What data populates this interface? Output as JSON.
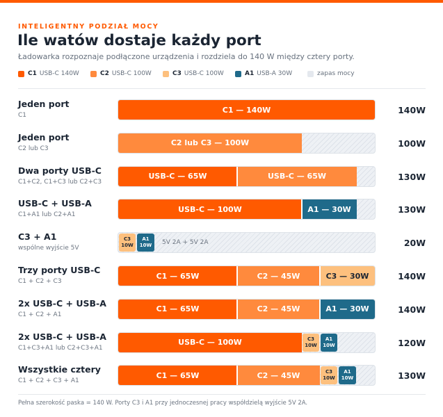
{
  "header": {
    "eyebrow": "INTELIGENTNY PODZIAŁ MOCY",
    "title": "Ile watów dostaje każdy port",
    "subtitle": "Ładowarka rozpoznaje podłączone urządzenia i rozdziela do 140 W między cztery porty."
  },
  "legend": [
    {
      "key": "C1",
      "label": "USB-C 140W",
      "color": "#ff5a00"
    },
    {
      "key": "C2",
      "label": "USB-C 100W",
      "color": "#ff8a3d"
    },
    {
      "key": "C3",
      "label": "USB-C 100W",
      "color": "#fdc07e"
    },
    {
      "key": "A1",
      "label": "USB-A 30W",
      "color": "#1f6a8a"
    },
    {
      "key": "",
      "label": "zapas mocy",
      "color": "#e4e8ee"
    }
  ],
  "chart_data": {
    "type": "bar",
    "orientation": "horizontal",
    "stacked": true,
    "xlim": [
      0,
      140
    ],
    "unit": "W",
    "categories": [
      "Jeden port",
      "Jeden port",
      "Dwa porty USB-C",
      "USB-C + USB-A",
      "C3 + A1",
      "Trzy porty USB-C",
      "2x USB-C + USB-A",
      "2x USB-C + USB-A",
      "Wszystkie cztery"
    ],
    "rows": [
      {
        "label": "Jeden port",
        "sub": "C1",
        "total": "140W",
        "spare_label": "",
        "segments": [
          {
            "port": "C1",
            "value": 140,
            "label": "C1 — 140W"
          }
        ]
      },
      {
        "label": "Jeden port",
        "sub": "C2 lub C3",
        "total": "100W",
        "spare_label": "",
        "segments": [
          {
            "port": "C2",
            "value": 100,
            "label": "C2 lub C3 — 100W"
          }
        ]
      },
      {
        "label": "Dwa porty USB-C",
        "sub": "C1+C2, C1+C3 lub C2+C3",
        "total": "130W",
        "spare_label": "",
        "segments": [
          {
            "port": "C1",
            "value": 65,
            "label": "USB-C — 65W"
          },
          {
            "port": "C2",
            "value": 65,
            "label": "USB-C — 65W"
          }
        ]
      },
      {
        "label": "USB-C + USB-A",
        "sub": "C1+A1 lub C2+A1",
        "total": "130W",
        "spare_label": "",
        "segments": [
          {
            "port": "C1",
            "value": 100,
            "label": "USB-C — 100W"
          },
          {
            "port": "A1",
            "value": 30,
            "label": "A1 — 30W"
          }
        ]
      },
      {
        "label": "C3 + A1",
        "sub": "wspólne wyjście 5V",
        "total": "20W",
        "spare_label": "5V 2A + 5V 2A",
        "segments": [
          {
            "port": "C3",
            "value": 10,
            "label": "C3 10W",
            "small": true
          },
          {
            "port": "A1",
            "value": 10,
            "label": "A1 10W",
            "small": true
          }
        ]
      },
      {
        "label": "Trzy porty USB-C",
        "sub": "C1 + C2 + C3",
        "total": "140W",
        "spare_label": "",
        "segments": [
          {
            "port": "C1",
            "value": 65,
            "label": "C1 — 65W"
          },
          {
            "port": "C2",
            "value": 45,
            "label": "C2 — 45W"
          },
          {
            "port": "C3",
            "value": 30,
            "label": "C3 — 30W"
          }
        ]
      },
      {
        "label": "2x USB-C + USB-A",
        "sub": "C1 + C2 + A1",
        "total": "140W",
        "spare_label": "",
        "segments": [
          {
            "port": "C1",
            "value": 65,
            "label": "C1 — 65W"
          },
          {
            "port": "C2",
            "value": 45,
            "label": "C2 — 45W"
          },
          {
            "port": "A1",
            "value": 30,
            "label": "A1 — 30W"
          }
        ]
      },
      {
        "label": "2x USB-C + USB-A",
        "sub": "C1+C3+A1 lub C2+C3+A1",
        "total": "120W",
        "spare_label": "",
        "segments": [
          {
            "port": "C1",
            "value": 100,
            "label": "USB-C — 100W"
          },
          {
            "port": "C3",
            "value": 10,
            "label": "C3 10W",
            "small": true
          },
          {
            "port": "A1",
            "value": 10,
            "label": "A1 10W",
            "small": true
          }
        ]
      },
      {
        "label": "Wszystkie cztery",
        "sub": "C1 + C2 + C3 + A1",
        "total": "130W",
        "spare_label": "",
        "segments": [
          {
            "port": "C1",
            "value": 65,
            "label": "C1 — 65W"
          },
          {
            "port": "C2",
            "value": 45,
            "label": "C2 — 45W"
          },
          {
            "port": "C3",
            "value": 10,
            "label": "C3 10W",
            "small": true
          },
          {
            "port": "A1",
            "value": 10,
            "label": "A1 10W",
            "small": true
          }
        ]
      }
    ]
  },
  "footnote": "Pełna szerokość paska = 140 W. Porty C3 i A1 przy jednoczesnej pracy współdzielą wyjście 5V 2A."
}
